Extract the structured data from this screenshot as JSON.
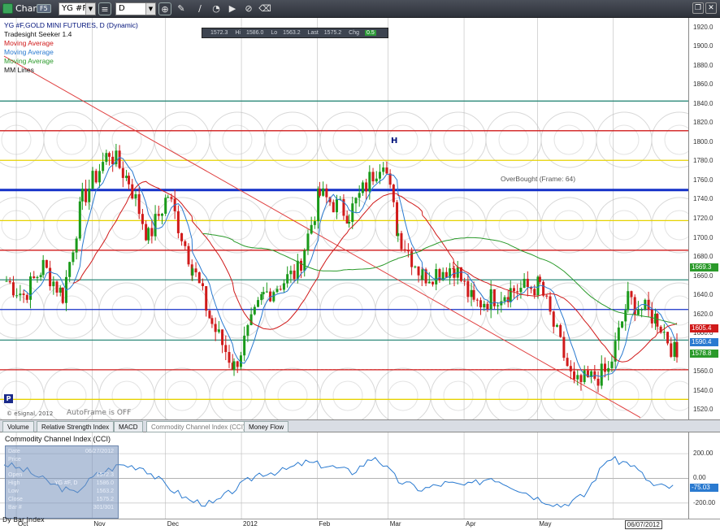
{
  "toolbar": {
    "title": "Chart",
    "badge": "F5",
    "symbol": "YG #F",
    "interval": "D",
    "icons": [
      "search-icon",
      "pencil-icon",
      "line-tool-icon",
      "zoom-icon",
      "play-icon",
      "link-icon",
      "eraser-icon"
    ],
    "window_controls": [
      "restore-icon",
      "close-icon"
    ]
  },
  "legend": {
    "lines": [
      "YG #F,GOLD MINI FUTURES, D (Dynamic)",
      "Tradesight Seeker 1.4",
      "Moving Average",
      "Moving Average",
      "Moving Average",
      "MM Lines"
    ],
    "colors": [
      "#00127a",
      "#111111",
      "#d01a1a",
      "#2a7ad0",
      "#2a9a2a",
      "#111111"
    ]
  },
  "quote": {
    "open_label": "",
    "open": "1572.3",
    "high_label": "Hi",
    "high": "1586.0",
    "low_label": "Lo",
    "low": "1563.2",
    "last_label": "Last",
    "last": "1575.2",
    "chg_label": "Chg",
    "chg": "0.5"
  },
  "price_axis": {
    "ticks": [
      "1920.0",
      "1900.0",
      "1880.0",
      "1860.0",
      "1840.0",
      "1820.0",
      "1800.0",
      "1780.0",
      "1760.0",
      "1740.0",
      "1720.0",
      "1700.0",
      "1680.0",
      "1660.0",
      "1640.0",
      "1620.0",
      "1600.0",
      "1580.0",
      "1560.0",
      "1540.0",
      "1520.0"
    ],
    "tags": [
      {
        "text": "1669.3",
        "color": "#2a9a2a"
      },
      {
        "text": "1605.4",
        "color": "#d01a1a"
      },
      {
        "text": "1590.4",
        "color": "#2a7ad0"
      },
      {
        "text": "1578.8",
        "color": "#2a9a2a"
      }
    ]
  },
  "annotations": {
    "overbought": "OverBought  (Frame: 64)",
    "h_mark": "H",
    "p_badge": "P",
    "esignal": "© eSignal, 2012",
    "autoframe": "AutoFrame is OFF"
  },
  "tabs": [
    {
      "label": "Volume",
      "active": false
    },
    {
      "label": "Relative Strength Index",
      "active": false
    },
    {
      "label": "MACD",
      "active": false
    },
    {
      "label": "Commodity Channel Index (CCI)",
      "active": true
    },
    {
      "label": "Money Flow",
      "active": false
    }
  ],
  "cci": {
    "title": "Commodity Channel Index (CCI)",
    "ticks": [
      "200.00",
      "0.00",
      "-200.00"
    ],
    "tag": "-75.03",
    "data_window": {
      "rows": [
        {
          "k": "Date",
          "v": "06/27/2012"
        },
        {
          "k": "Price",
          "v": ""
        },
        {
          "k": "",
          "v": ""
        },
        {
          "k": "Open",
          "v": "1572.3"
        },
        {
          "k": "High",
          "v": "1586.0"
        },
        {
          "k": "Low",
          "v": "1563.2"
        },
        {
          "k": "Close",
          "v": "1575.2"
        },
        {
          "k": "Bar #",
          "v": "301/301"
        }
      ],
      "symbol": "YG #F, D"
    }
  },
  "date_axis": {
    "ticks": [
      {
        "label": "Oct"
      },
      {
        "label": "Nov"
      },
      {
        "label": "Dec"
      },
      {
        "label": "2012"
      },
      {
        "label": "Feb"
      },
      {
        "label": "Mar"
      },
      {
        "label": "Apr"
      },
      {
        "label": "May"
      }
    ],
    "cursor_date": "06/07/2012",
    "overlay_lines": [
      "Bar Index",
      "Tradesight Seeker 1.4"
    ],
    "overlay_prefix": "Dy"
  },
  "chart_data": {
    "type": "candlestick",
    "symbol": "YG #F,GOLD MINI FUTURES",
    "interval": "D",
    "ylim": [
      1510,
      1930
    ],
    "yticks": [
      1520,
      1540,
      1560,
      1580,
      1600,
      1620,
      1640,
      1660,
      1680,
      1700,
      1720,
      1740,
      1760,
      1780,
      1800,
      1820,
      1840,
      1860,
      1880,
      1900,
      1920
    ],
    "x_range": [
      "2011-09-26",
      "2012-06-27"
    ],
    "horizontal_levels": [
      {
        "price": 1843,
        "color": "#2e8a7a"
      },
      {
        "price": 1812,
        "color": "#d01a1a"
      },
      {
        "price": 1781,
        "color": "#e6d200"
      },
      {
        "price": 1750,
        "color": "#1430c8",
        "label": "OverBought  (Frame: 64)"
      },
      {
        "price": 1718,
        "color": "#e6d200"
      },
      {
        "price": 1687,
        "color": "#d01a1a"
      },
      {
        "price": 1656,
        "color": "#2e8a7a"
      },
      {
        "price": 1625,
        "color": "#1430c8"
      },
      {
        "price": 1593,
        "color": "#2e8a7a"
      },
      {
        "price": 1562,
        "color": "#d01a1a"
      },
      {
        "price": 1531,
        "color": "#e6d200"
      }
    ],
    "ohlc_close_path": [
      {
        "date": "2011-09-27",
        "close": 1655
      },
      {
        "date": "2011-10-04",
        "close": 1640
      },
      {
        "date": "2011-10-12",
        "close": 1670
      },
      {
        "date": "2011-10-20",
        "close": 1640
      },
      {
        "date": "2011-10-28",
        "close": 1740
      },
      {
        "date": "2011-11-08",
        "close": 1790
      },
      {
        "date": "2011-11-16",
        "close": 1760
      },
      {
        "date": "2011-11-24",
        "close": 1700
      },
      {
        "date": "2011-12-02",
        "close": 1745
      },
      {
        "date": "2011-12-12",
        "close": 1670
      },
      {
        "date": "2011-12-20",
        "close": 1610
      },
      {
        "date": "2011-12-29",
        "close": 1565
      },
      {
        "date": "2012-01-10",
        "close": 1640
      },
      {
        "date": "2012-01-24",
        "close": 1665
      },
      {
        "date": "2012-02-02",
        "close": 1745
      },
      {
        "date": "2012-02-14",
        "close": 1725
      },
      {
        "date": "2012-02-28",
        "close": 1785
      },
      {
        "date": "2012-03-05",
        "close": 1705
      },
      {
        "date": "2012-03-15",
        "close": 1660
      },
      {
        "date": "2012-03-28",
        "close": 1670
      },
      {
        "date": "2012-04-05",
        "close": 1630
      },
      {
        "date": "2012-04-20",
        "close": 1645
      },
      {
        "date": "2012-05-02",
        "close": 1650
      },
      {
        "date": "2012-05-16",
        "close": 1545
      },
      {
        "date": "2012-05-30",
        "close": 1560
      },
      {
        "date": "2012-06-07",
        "close": 1635
      },
      {
        "date": "2012-06-19",
        "close": 1615
      },
      {
        "date": "2012-06-27",
        "close": 1575
      }
    ],
    "cci_ylim": [
      -300,
      280
    ],
    "cci_values_sample": [
      120,
      60,
      -40,
      -120,
      30,
      110,
      90,
      -60,
      -180,
      -210,
      -80,
      40,
      60,
      130,
      100,
      50,
      180,
      -20,
      -90,
      -40,
      -60,
      10,
      -70,
      -160,
      -220,
      -140,
      160,
      120,
      -60,
      -75
    ]
  }
}
